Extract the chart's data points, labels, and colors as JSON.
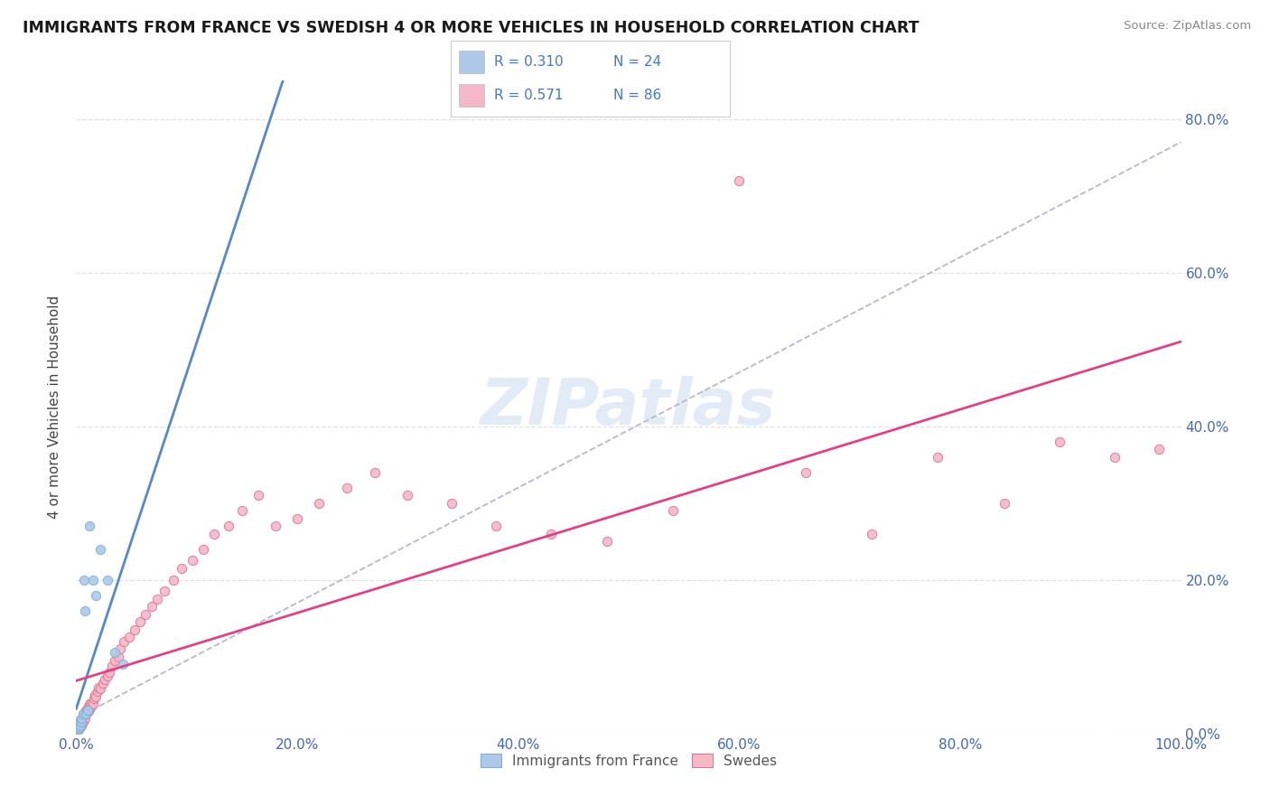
{
  "title": "IMMIGRANTS FROM FRANCE VS SWEDISH 4 OR MORE VEHICLES IN HOUSEHOLD CORRELATION CHART",
  "source": "Source: ZipAtlas.com",
  "ylabel": "4 or more Vehicles in Household",
  "legend_label1": "Immigrants from France",
  "legend_label2": "Swedes",
  "R1": "0.310",
  "N1": "24",
  "R2": "0.571",
  "N2": "86",
  "color_blue_fill": "#adc8e8",
  "color_blue_edge": "#7aafd4",
  "color_pink_fill": "#f5b8c8",
  "color_pink_edge": "#e07090",
  "color_blue_line": "#5588cc",
  "color_pink_line": "#dd4488",
  "color_dash": "#b8b8c8",
  "color_blue_text": "#4477cc",
  "watermark_color": "#c8d8ee",
  "watermark": "ZIPatlas",
  "france_x": [
    0.001,
    0.001,
    0.002,
    0.002,
    0.002,
    0.003,
    0.003,
    0.003,
    0.004,
    0.004,
    0.005,
    0.005,
    0.006,
    0.007,
    0.008,
    0.009,
    0.01,
    0.012,
    0.015,
    0.018,
    0.022,
    0.028,
    0.035,
    0.042
  ],
  "france_y": [
    0.005,
    0.01,
    0.005,
    0.008,
    0.012,
    0.01,
    0.008,
    0.015,
    0.012,
    0.01,
    0.015,
    0.02,
    0.025,
    0.2,
    0.16,
    0.025,
    0.03,
    0.27,
    0.2,
    0.18,
    0.24,
    0.2,
    0.105,
    0.09
  ],
  "swedes_x": [
    0.001,
    0.001,
    0.001,
    0.002,
    0.002,
    0.002,
    0.002,
    0.003,
    0.003,
    0.003,
    0.003,
    0.004,
    0.004,
    0.004,
    0.005,
    0.005,
    0.005,
    0.006,
    0.006,
    0.006,
    0.007,
    0.007,
    0.007,
    0.008,
    0.008,
    0.008,
    0.009,
    0.009,
    0.01,
    0.01,
    0.011,
    0.011,
    0.012,
    0.012,
    0.013,
    0.014,
    0.015,
    0.016,
    0.017,
    0.018,
    0.019,
    0.02,
    0.022,
    0.024,
    0.026,
    0.028,
    0.03,
    0.032,
    0.035,
    0.038,
    0.04,
    0.043,
    0.048,
    0.053,
    0.058,
    0.063,
    0.068,
    0.073,
    0.08,
    0.088,
    0.095,
    0.105,
    0.115,
    0.125,
    0.138,
    0.15,
    0.165,
    0.18,
    0.2,
    0.22,
    0.245,
    0.27,
    0.3,
    0.34,
    0.38,
    0.43,
    0.48,
    0.54,
    0.6,
    0.66,
    0.72,
    0.78,
    0.84,
    0.89,
    0.94,
    0.98
  ],
  "swedes_y": [
    0.008,
    0.005,
    0.01,
    0.005,
    0.008,
    0.01,
    0.012,
    0.008,
    0.01,
    0.012,
    0.015,
    0.01,
    0.012,
    0.015,
    0.01,
    0.015,
    0.018,
    0.015,
    0.018,
    0.02,
    0.018,
    0.02,
    0.025,
    0.02,
    0.025,
    0.028,
    0.025,
    0.03,
    0.028,
    0.032,
    0.03,
    0.035,
    0.032,
    0.038,
    0.035,
    0.04,
    0.038,
    0.045,
    0.05,
    0.048,
    0.055,
    0.06,
    0.058,
    0.065,
    0.07,
    0.075,
    0.08,
    0.088,
    0.095,
    0.1,
    0.11,
    0.12,
    0.125,
    0.135,
    0.145,
    0.155,
    0.165,
    0.175,
    0.185,
    0.2,
    0.215,
    0.225,
    0.24,
    0.26,
    0.27,
    0.29,
    0.31,
    0.27,
    0.28,
    0.3,
    0.32,
    0.34,
    0.31,
    0.3,
    0.27,
    0.26,
    0.25,
    0.29,
    0.72,
    0.34,
    0.26,
    0.36,
    0.3,
    0.38,
    0.36,
    0.37
  ],
  "xlim": [
    0.0,
    1.0
  ],
  "ylim": [
    0.0,
    0.85
  ],
  "xticks": [
    0.0,
    0.2,
    0.4,
    0.6,
    0.8,
    1.0
  ],
  "yticks": [
    0.0,
    0.2,
    0.4,
    0.6,
    0.8
  ],
  "grid_color": "#e0e0e8",
  "bg_color": "#ffffff"
}
